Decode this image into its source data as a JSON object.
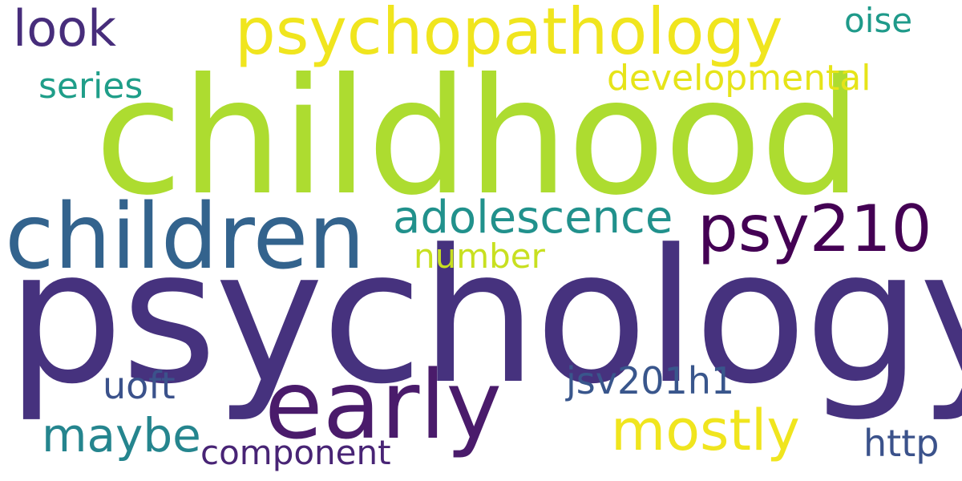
{
  "background": "#ffffff",
  "words": [
    {
      "text": "psychology",
      "color": "#46327e"
    },
    {
      "text": "childhood",
      "color": "#addc30"
    },
    {
      "text": "children",
      "color": "#33638d"
    },
    {
      "text": "early",
      "color": "#4a1b6b"
    },
    {
      "text": "psychopathology",
      "color": "#f0e51e"
    },
    {
      "text": "psy210",
      "color": "#440154"
    },
    {
      "text": "adolescence",
      "color": "#21918c"
    },
    {
      "text": "mostly",
      "color": "#f0e51e"
    },
    {
      "text": "developmental",
      "color": "#e6e419"
    },
    {
      "text": "look",
      "color": "#472d7b"
    },
    {
      "text": "oise",
      "color": "#1f9a8a"
    },
    {
      "text": "series",
      "color": "#1f9e89"
    },
    {
      "text": "number",
      "color": "#c8e020"
    },
    {
      "text": "maybe",
      "color": "#25858e"
    },
    {
      "text": "uoft",
      "color": "#3b528b"
    },
    {
      "text": "jsv201h1",
      "color": "#39568c"
    },
    {
      "text": "component",
      "color": "#482475"
    },
    {
      "text": "http",
      "color": "#3b528b"
    }
  ]
}
